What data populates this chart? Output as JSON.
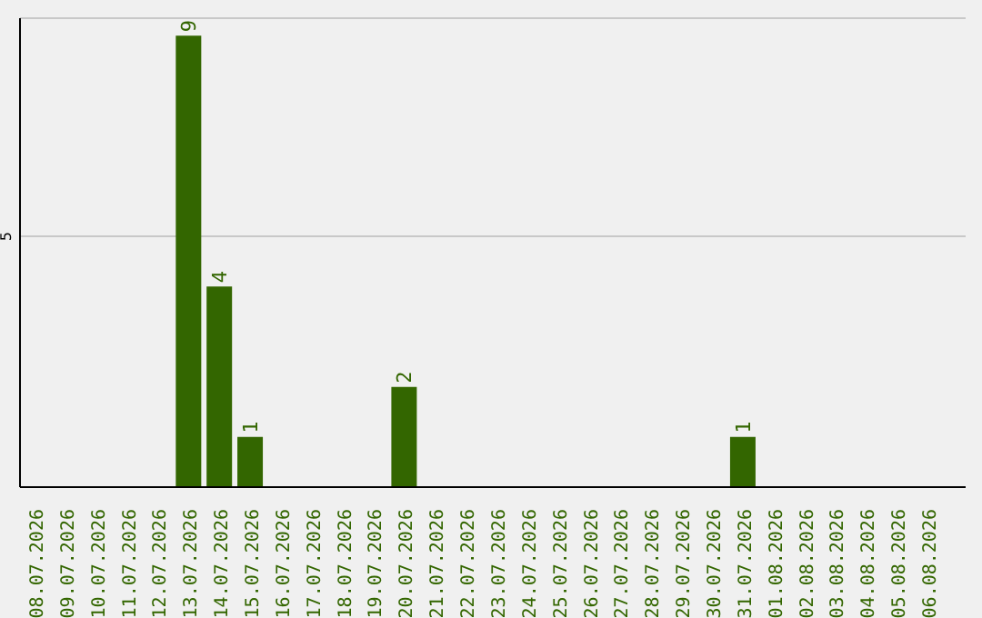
{
  "chart_data": {
    "type": "bar",
    "categories": [
      "08.07.2026",
      "09.07.2026",
      "10.07.2026",
      "11.07.2026",
      "12.07.2026",
      "13.07.2026",
      "14.07.2026",
      "15.07.2026",
      "16.07.2026",
      "17.07.2026",
      "18.07.2026",
      "19.07.2026",
      "20.07.2026",
      "21.07.2026",
      "22.07.2026",
      "23.07.2026",
      "24.07.2026",
      "25.07.2026",
      "26.07.2026",
      "27.07.2026",
      "28.07.2026",
      "29.07.2026",
      "30.07.2026",
      "31.07.2026",
      "01.08.2026",
      "02.08.2026",
      "03.08.2026",
      "04.08.2026",
      "05.08.2026",
      "06.08.2026"
    ],
    "values": [
      0,
      0,
      0,
      0,
      0,
      9,
      4,
      1,
      0,
      0,
      0,
      0,
      2,
      0,
      0,
      0,
      0,
      0,
      0,
      0,
      0,
      0,
      0,
      1,
      0,
      0,
      0,
      0,
      0,
      0
    ],
    "value_labels": [
      null,
      null,
      null,
      null,
      null,
      "9",
      "4",
      "1",
      null,
      null,
      null,
      null,
      "2",
      null,
      null,
      null,
      null,
      null,
      null,
      null,
      null,
      null,
      null,
      "1",
      null,
      null,
      null,
      null,
      null,
      null
    ],
    "color": "#336600",
    "ylim": [
      0,
      9.35
    ],
    "yticks": [
      5
    ],
    "grid": "y"
  }
}
